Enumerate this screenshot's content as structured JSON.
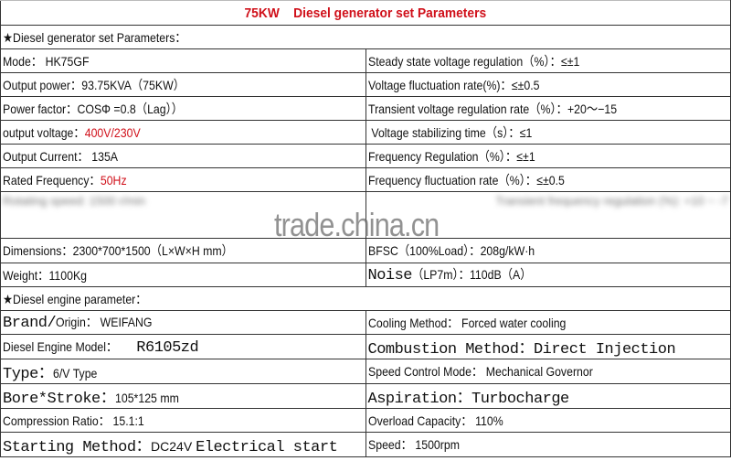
{
  "title": "75KW    Diesel generator set Parameters",
  "section1": "★Diesel generator set Parameters：",
  "gen_rows": [
    {
      "l_label": "Mode：",
      "l_value": "HK75GF",
      "r_label": "Steady state voltage regulation（%）：",
      "r_value": "≤±1"
    },
    {
      "l_label": "Output power：",
      "l_value": "93.75KVA（75KW）",
      "r_label": "Voltage fluctuation rate(%)：",
      "r_value": "≤±0.5"
    },
    {
      "l_label": "Power factor：",
      "l_value": "COSΦ =0.8（Lag））",
      "r_label": "Transient voltage regulation rate（%）：",
      "r_value": "+20～−15"
    },
    {
      "l_label": "output voltage：",
      "l_value": "400V/230V",
      "r_label": " Voltage stabilizing time（s）：",
      "r_value": "≤1"
    },
    {
      "l_label": "Output Current：",
      "l_value": "135A",
      "r_label": "Frequency Regulation（%）：",
      "r_value": "≤±1"
    },
    {
      "l_label": "Rated Frequency：",
      "l_value": "50Hz",
      "r_label": "Frequency fluctuation rate（%）：",
      "r_value": "≤±0.5"
    }
  ],
  "blurred_row": {
    "left": "Rotating speed: 1500 r/min",
    "right": "Transient frequency regulation (%): +10 ~ -7"
  },
  "watermark": "trade.china.cn",
  "gen_rows2": [
    {
      "l_label": "Dimensions：",
      "l_value": "2300*700*1500（L×W×H mm）",
      "r_label": "BFSC（100%Load）：",
      "r_value": "208g/kW·h"
    },
    {
      "l_label": "Weight：",
      "l_value": "1100Kg",
      "r_label": "Noise",
      "r_value": "（LP7m）：110dB（A）"
    }
  ],
  "section2": "★Diesel engine parameter：",
  "eng_rows": [
    {
      "l_label": "Brand/",
      "l_label2": "Origin：",
      "l_value": "WEIFANG",
      "r_label": "Cooling Method：",
      "r_value": "Forced water cooling"
    },
    {
      "l_label": "Diesel Engine Model：",
      "l_value": "R6105zd",
      "r_label": "Combustion Method：",
      "r_value": "Direct Injection"
    },
    {
      "l_label": "Type：",
      "l_value": "6/V Type",
      "r_label": "Speed Control Mode：",
      "r_value": "Mechanical Governor"
    },
    {
      "l_label": "Bore*Stroke：",
      "l_value": "105*125 mm",
      "r_label": "Aspiration：",
      "r_value": "Turbocharge"
    },
    {
      "l_label": "Compression Ratio：",
      "l_value": "15.1:1",
      "r_label": "Overload Capacity：",
      "r_value": "110%"
    },
    {
      "l_label": "Starting Method：",
      "l_value": "DC24V",
      "l_value2": "Electrical start",
      "r_label": "Speed：",
      "r_value": "1500rpm"
    }
  ],
  "colors": {
    "accent_red": "#d0101a",
    "border": "#333333"
  }
}
